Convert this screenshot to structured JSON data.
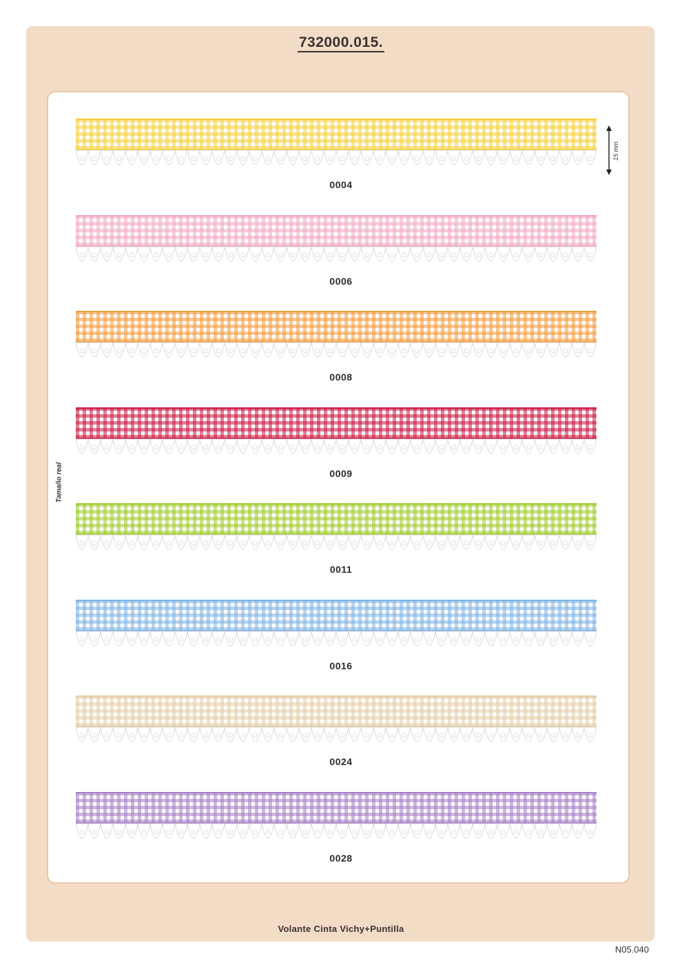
{
  "header": {
    "reference": "732000.015."
  },
  "side_label": "Tamaño real",
  "measure_label": "15 mm.",
  "ribbons": [
    {
      "code": "0004",
      "color": "#f6cf3c"
    },
    {
      "code": "0006",
      "color": "#f2a7c3"
    },
    {
      "code": "0008",
      "color": "#f39a3d"
    },
    {
      "code": "0009",
      "color": "#c9173f"
    },
    {
      "code": "0011",
      "color": "#9ccc2a"
    },
    {
      "code": "0016",
      "color": "#7fb3e3"
    },
    {
      "code": "0024",
      "color": "#e3cba6"
    },
    {
      "code": "0028",
      "color": "#a67ec6"
    }
  ],
  "footer": {
    "product_name": "Volante Cinta Vichy+Puntilla",
    "page_ref": "N05.040"
  }
}
